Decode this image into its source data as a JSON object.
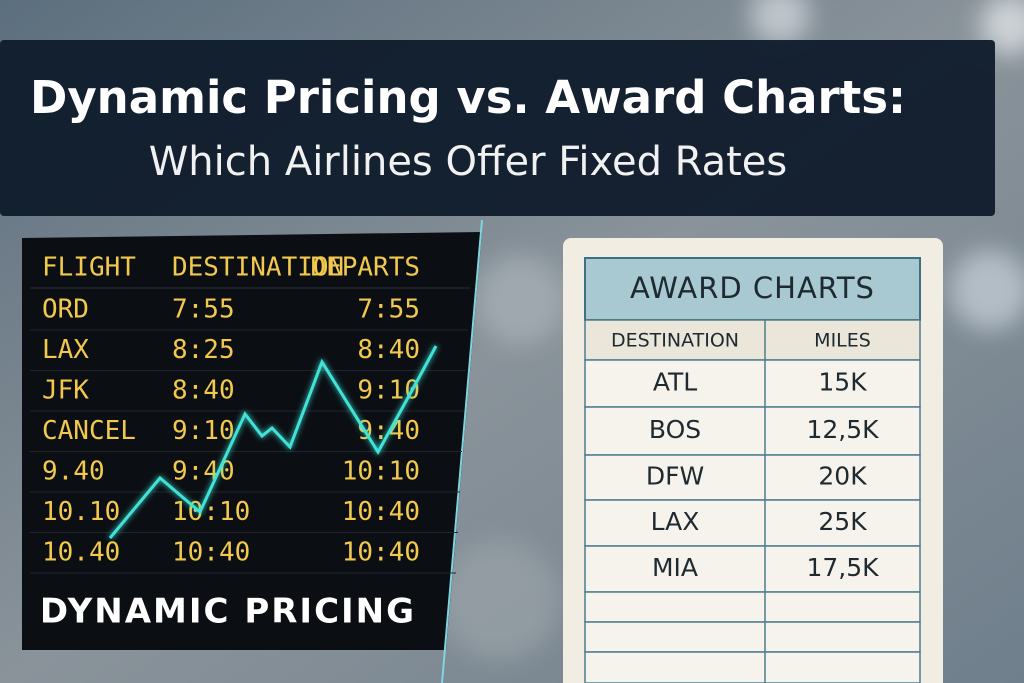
{
  "header": {
    "title": "Dynamic Pricing vs. Award Charts:",
    "subtitle": "Which Airlines Offer Fixed Rates"
  },
  "board": {
    "columns": [
      "FLIGHT",
      "DESTINATION",
      "DEPARTS"
    ],
    "rows": [
      [
        "ORD",
        "7:55",
        "7:55"
      ],
      [
        "LAX",
        "8:25",
        "8:40"
      ],
      [
        "JFK",
        "8:40",
        "9:10"
      ],
      [
        "CANCEL",
        "9:10",
        "9:40"
      ],
      [
        "9.40",
        "9:40",
        "10:10"
      ],
      [
        "10.10",
        "10:10",
        "10:40"
      ],
      [
        "10.40",
        "10:40",
        "10:40"
      ]
    ],
    "label": "DYNAMIC PRICING"
  },
  "award_table": {
    "title": "AWARD CHARTS",
    "columns": [
      "DESTINATION",
      "MILES"
    ],
    "rows": [
      [
        "ATL",
        "15K"
      ],
      [
        "BOS",
        "12,5K"
      ],
      [
        "DFW",
        "20K"
      ],
      [
        "LAX",
        "25K"
      ],
      [
        "MIA",
        "17,5K"
      ]
    ]
  }
}
